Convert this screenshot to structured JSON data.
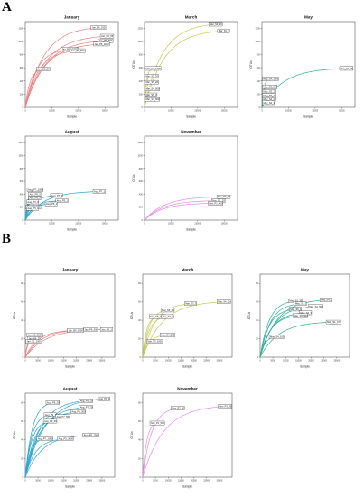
{
  "panels": [
    {
      "letter": "A"
    },
    {
      "letter": "B"
    }
  ],
  "chart_data": [
    {
      "type": "line",
      "panel": "A",
      "title": "January",
      "xlabel": "Sample",
      "ylabel": "",
      "x_ticks": [
        "0",
        "10000",
        "20000",
        "30000"
      ],
      "y_ticks": [
        "0",
        "200",
        "400",
        "600",
        "800",
        "1000",
        "1200"
      ],
      "ylim": [
        0,
        1300
      ],
      "xlim": [
        0,
        35000
      ],
      "color": "#f08080",
      "series": [
        {
          "name": "Jan_B6_1000",
          "end": [
            28000,
            1210
          ]
        },
        {
          "name": "Jan_P6_55",
          "end": [
            31000,
            1080
          ]
        },
        {
          "name": "Jan_B6_500",
          "end": [
            30500,
            1010
          ]
        },
        {
          "name": "Jan_P6_1000",
          "end": [
            29000,
            960
          ]
        },
        {
          "name": "Jan_B10_1000",
          "end": [
            17000,
            880
          ]
        },
        {
          "name": "Jan_B5_500",
          "end": [
            20000,
            860
          ]
        },
        {
          "name": "Jan_B6_20",
          "end": [
            7000,
            580
          ]
        }
      ]
    },
    {
      "type": "line",
      "panel": "A",
      "title": "March",
      "xlabel": "Sample",
      "ylabel": "OTUs",
      "x_ticks": [
        "0",
        "10000",
        "20000",
        "30000"
      ],
      "y_ticks": [
        "0",
        "200",
        "400",
        "600",
        "800",
        "1000",
        "1200"
      ],
      "ylim": [
        0,
        1300
      ],
      "xlim": [
        0,
        35000
      ],
      "color": "#c8c850",
      "series": [
        {
          "name": "Mar_S3_20",
          "end": [
            27000,
            1260
          ]
        },
        {
          "name": "Mar_S1_3",
          "end": [
            30000,
            1160
          ]
        },
        {
          "name": "Mar_S2_1000",
          "end": [
            3000,
            590
          ]
        },
        {
          "name": "Mar_S2_20",
          "end": [
            2000,
            470
          ]
        },
        {
          "name": "Mar_S5_20",
          "end": [
            2200,
            380
          ]
        },
        {
          "name": "Mar_S4_500",
          "end": [
            1500,
            280
          ]
        },
        {
          "name": "Mar_S5_3",
          "end": [
            1800,
            190
          ]
        },
        {
          "name": "Mar_S4_500",
          "end": [
            1500,
            120
          ]
        }
      ]
    },
    {
      "type": "line",
      "panel": "A",
      "title": "May",
      "xlabel": "Sample",
      "ylabel": "OTUs",
      "x_ticks": [
        "0",
        "10000",
        "20000",
        "30000"
      ],
      "y_ticks": [
        "0",
        "200",
        "400",
        "600",
        "800",
        "1000",
        "1200"
      ],
      "ylim": [
        0,
        1300
      ],
      "xlim": [
        0,
        35000
      ],
      "color": "#2ab09a",
      "series": [
        {
          "name": "May_S1_20",
          "end": [
            32000,
            590
          ]
        },
        {
          "name": "May_S4_1000",
          "end": [
            3000,
            430
          ]
        },
        {
          "name": "May_S2_500",
          "end": [
            2000,
            310
          ]
        },
        {
          "name": "May_S5_20",
          "end": [
            2000,
            240
          ]
        },
        {
          "name": "May_S5_20",
          "end": [
            2000,
            180
          ]
        },
        {
          "name": "May_S4_20",
          "end": [
            2000,
            120
          ]
        },
        {
          "name": "May_S2_3",
          "end": [
            2000,
            70
          ]
        }
      ]
    },
    {
      "type": "line",
      "panel": "A",
      "title": "August",
      "xlabel": "Sample",
      "ylabel": "",
      "x_ticks": [
        "0",
        "10000",
        "20000",
        "30000"
      ],
      "y_ticks": [
        "0",
        "200",
        "400",
        "600",
        "800",
        "1000",
        "1200"
      ],
      "ylim": [
        0,
        1300
      ],
      "xlim": [
        0,
        35000
      ],
      "color": "#2aa6d8",
      "series": [
        {
          "name": "Aug_P7_1000",
          "end": [
            4000,
            470
          ]
        },
        {
          "name": "Aug_P7_1",
          "end": [
            28000,
            440
          ]
        },
        {
          "name": "Aug_P5_20",
          "end": [
            4000,
            400
          ]
        },
        {
          "name": "Aug_P7_3",
          "end": [
            12000,
            380
          ]
        },
        {
          "name": "Aug_P9_20",
          "end": [
            4000,
            340
          ]
        },
        {
          "name": "Aug_P5_1",
          "end": [
            14000,
            300
          ]
        },
        {
          "name": "Aug_P9_3",
          "end": [
            3000,
            280
          ]
        },
        {
          "name": "Aug_P5_1",
          "end": [
            10000,
            250
          ]
        },
        {
          "name": "Aug_P5_1000",
          "end": [
            3000,
            200
          ]
        },
        {
          "name": "Aug_P5_1",
          "end": [
            3000,
            180
          ]
        }
      ]
    },
    {
      "type": "line",
      "panel": "A",
      "title": "November",
      "xlabel": "Sample",
      "ylabel": "OTUs",
      "x_ticks": [
        "0",
        "10000",
        "20000",
        "30000"
      ],
      "y_ticks": [
        "0",
        "200",
        "400",
        "600",
        "800",
        "1000",
        "1200"
      ],
      "ylim": [
        0,
        1300
      ],
      "xlim": [
        0,
        35000
      ],
      "color": "#e78ae8",
      "series": [
        {
          "name": "Nov_P2_20",
          "end": [
            30000,
            360
          ]
        },
        {
          "name": "Nov_P1_20",
          "end": [
            28000,
            300
          ]
        },
        {
          "name": "Nov_P2_500",
          "end": [
            27000,
            260
          ]
        }
      ]
    },
    {
      "type": "line",
      "panel": "B",
      "title": "January",
      "xlabel": "Sample",
      "ylabel": "OTUs",
      "x_ticks": [
        "0",
        "5000",
        "10000",
        "15000",
        "20000",
        "25000",
        "30000"
      ],
      "y_ticks": [
        "0",
        "20",
        "40",
        "60",
        "80"
      ],
      "ylim": [
        0,
        90
      ],
      "xlim": [
        0,
        35000
      ],
      "color": "#f08080",
      "series": [
        {
          "name": "Jan_B5_1",
          "end": [
            32000,
            30
          ]
        },
        {
          "name": "Jan_P6_500",
          "end": [
            26000,
            30
          ]
        },
        {
          "name": "Jan_B6_1000",
          "end": [
            20000,
            29
          ]
        },
        {
          "name": "Jan_B6_1000",
          "end": [
            4000,
            24
          ]
        },
        {
          "name": "Jan_B6_3",
          "end": [
            3500,
            20
          ]
        },
        {
          "name": "Jan_S1_1000",
          "end": [
            3000,
            17
          ]
        }
      ]
    },
    {
      "type": "line",
      "panel": "B",
      "title": "March",
      "xlabel": "Sample",
      "ylabel": "OTUs",
      "x_ticks": [
        "0",
        "5000",
        "10000",
        "15000",
        "20000",
        "25000",
        "30000"
      ],
      "y_ticks": [
        "0",
        "20",
        "40",
        "60",
        "80"
      ],
      "ylim": [
        0,
        90
      ],
      "xlim": [
        0,
        35000
      ],
      "color": "#c8c850",
      "series": [
        {
          "name": "Mar_S4_20",
          "end": [
            32000,
            60
          ]
        },
        {
          "name": "Mar_S3_3",
          "end": [
            19000,
            58
          ]
        },
        {
          "name": "Mar_S5_20",
          "end": [
            10000,
            51
          ]
        },
        {
          "name": "Mar_S5_1000",
          "end": [
            6000,
            44
          ]
        },
        {
          "name": "Mar_S3_3",
          "end": [
            10000,
            44
          ]
        },
        {
          "name": "Mar_S4_500",
          "end": [
            10000,
            24
          ]
        },
        {
          "name": "Mar_S3_1000",
          "end": [
            5000,
            17
          ]
        }
      ]
    },
    {
      "type": "line",
      "panel": "B",
      "title": "May",
      "xlabel": "Sample",
      "ylabel": "OTUs",
      "x_ticks": [
        "0",
        "5000",
        "10000",
        "15000",
        "20000",
        "25000",
        "30000"
      ],
      "y_ticks": [
        "0",
        "20",
        "40",
        "60",
        "80"
      ],
      "ylim": [
        0,
        90
      ],
      "xlim": [
        0,
        35000
      ],
      "color": "#2ab09a",
      "series": [
        {
          "name": "May_S4_1",
          "end": [
            26000,
            62
          ]
        },
        {
          "name": "May_S1_20",
          "end": [
            14000,
            61
          ]
        },
        {
          "name": "May_S2_1",
          "end": [
            16000,
            58
          ]
        },
        {
          "name": "May_S4_500",
          "end": [
            22000,
            55
          ]
        },
        {
          "name": "May_S5_1",
          "end": [
            14000,
            52
          ]
        },
        {
          "name": "May_S4_3",
          "end": [
            18000,
            48
          ]
        },
        {
          "name": "May_S5_500",
          "end": [
            16000,
            45
          ]
        },
        {
          "name": "May_S1_477",
          "end": [
            29000,
            38
          ]
        },
        {
          "name": "May_S4_1000",
          "end": [
            7000,
            22
          ]
        }
      ]
    },
    {
      "type": "line",
      "panel": "B",
      "title": "August",
      "xlabel": "Sample",
      "ylabel": "OTUs",
      "x_ticks": [
        "0",
        "5000",
        "10000",
        "15000",
        "20000",
        "25000",
        "30000"
      ],
      "y_ticks": [
        "0",
        "20",
        "40",
        "60",
        "80"
      ],
      "ylim": [
        0,
        90
      ],
      "xlim": [
        0,
        35000
      ],
      "color": "#2aa6d8",
      "series": [
        {
          "name": "Aug_P9_1",
          "end": [
            31000,
            84
          ]
        },
        {
          "name": "Aug_P5_20",
          "end": [
            24000,
            82
          ]
        },
        {
          "name": "Aug_P9_20",
          "end": [
            11000,
            80
          ]
        },
        {
          "name": "Aug_P7_20",
          "end": [
            24000,
            75
          ]
        },
        {
          "name": "Aug_P5_500",
          "end": [
            21000,
            70
          ]
        },
        {
          "name": "Aug_P9_1",
          "end": [
            10000,
            67
          ]
        },
        {
          "name": "Aug_P7_500",
          "end": [
            15000,
            65
          ]
        },
        {
          "name": "Aug_P9_20",
          "end": [
            10000,
            60
          ]
        },
        {
          "name": "Aug_P5_1000",
          "end": [
            26000,
            45
          ]
        },
        {
          "name": "Aug_P7_1000",
          "end": [
            8000,
            41
          ]
        },
        {
          "name": "Aug_P5_3000",
          "end": [
            16000,
            41
          ]
        }
      ]
    },
    {
      "type": "line",
      "panel": "B",
      "title": "November",
      "xlabel": "Sample",
      "ylabel": "OTUs",
      "x_ticks": [
        "0",
        "5000",
        "10000",
        "15000",
        "20000",
        "25000",
        "30000"
      ],
      "y_ticks": [
        "0",
        "20",
        "40",
        "60",
        "80"
      ],
      "ylim": [
        0,
        90
      ],
      "xlim": [
        0,
        35000
      ],
      "color": "#e78ae8",
      "series": [
        {
          "name": "Nov_P1_20",
          "end": [
            33000,
            76
          ]
        },
        {
          "name": "Nov_P2_20",
          "end": [
            14000,
            74
          ]
        },
        {
          "name": "Nov_P1_500",
          "end": [
            6000,
            58
          ]
        }
      ]
    }
  ]
}
